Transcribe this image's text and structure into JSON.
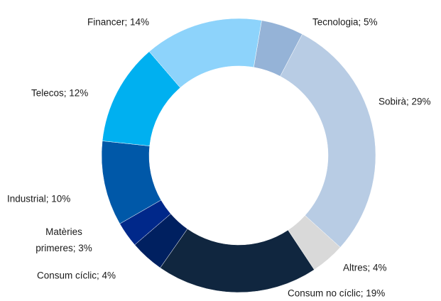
{
  "chart_data": {
    "type": "donut",
    "values": [
      5,
      29,
      4,
      19,
      4,
      3,
      10,
      12,
      14
    ],
    "value_labels": [
      "Tecnologia; 5%",
      "Sobirà; 29%",
      "Altres; 4%",
      "Consum no cíclic; 19%",
      "Consum cíclic; 4%",
      "Matèries primeres; 3%",
      "Industrial; 10%",
      "Telecos; 12%",
      "Financer; 14%"
    ],
    "colors": [
      "#95b3d7",
      "#b8cce4",
      "#d9d9d9",
      "#10263f",
      "#002060",
      "#00288a",
      "#0058a8",
      "#00b0f0",
      "#8dd3fb"
    ]
  }
}
